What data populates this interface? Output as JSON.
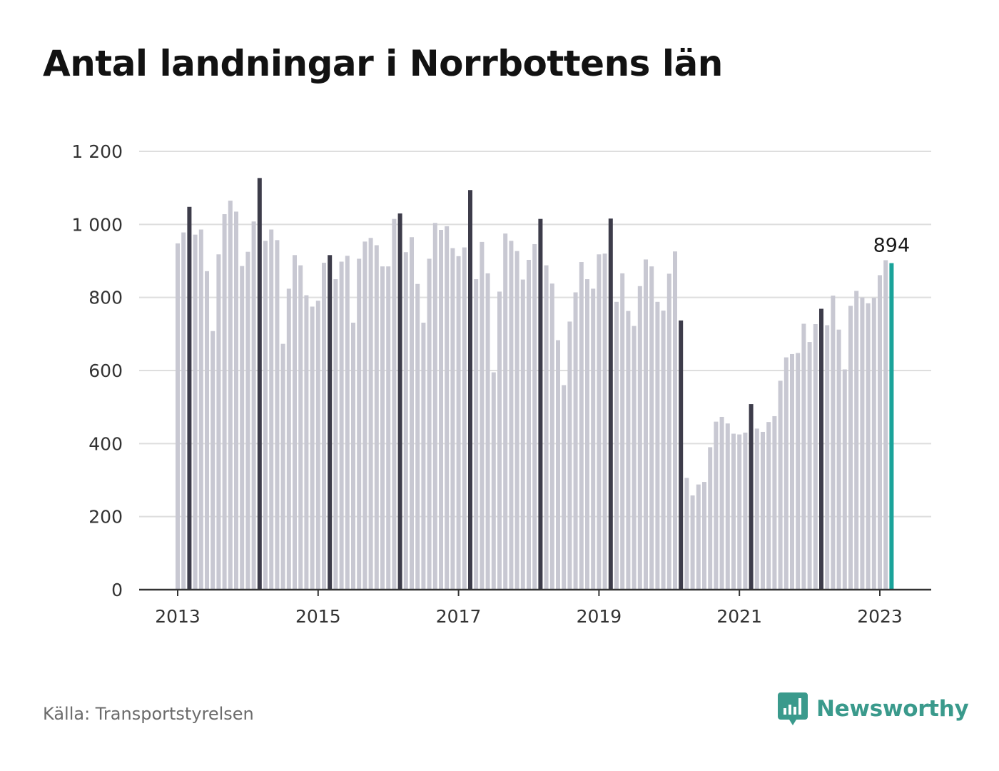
{
  "title": "Antal landningar i Norrbottens län",
  "source": "Källa: Transportstyrelsen",
  "brand": {
    "name": "Newsworthy",
    "icon": "newsworthy-logo-icon",
    "color": "#3a9a8c"
  },
  "colors": {
    "bar_regular": "#c8c8d2",
    "bar_march": "#3d3c4a",
    "bar_latest": "#1aa39a",
    "grid": "#dedede",
    "axis": "#333333"
  },
  "chart_data": {
    "type": "bar",
    "start": "2013-01",
    "ylim": [
      0,
      1200
    ],
    "yticks": [
      "0",
      "200",
      "400",
      "600",
      "800",
      "1 000",
      "1 200"
    ],
    "ytick_values": [
      0,
      200,
      400,
      600,
      800,
      1000,
      1200
    ],
    "xticks": [
      "2013",
      "2015",
      "2017",
      "2019",
      "2021",
      "2023"
    ],
    "grid": true,
    "highlight_month": "March",
    "latest_label": "894",
    "values": [
      948,
      978,
      1048,
      972,
      986,
      872,
      708,
      918,
      1028,
      1065,
      1035,
      886,
      925,
      1008,
      1127,
      955,
      986,
      957,
      673,
      824,
      916,
      888,
      806,
      775,
      791,
      895,
      916,
      850,
      898,
      914,
      731,
      906,
      953,
      963,
      943,
      885,
      885,
      1015,
      1030,
      924,
      965,
      837,
      731,
      906,
      1004,
      985,
      995,
      935,
      913,
      937,
      1094,
      850,
      952,
      866,
      595,
      816,
      975,
      955,
      927,
      849,
      903,
      946,
      1015,
      888,
      838,
      683,
      560,
      734,
      814,
      897,
      850,
      824,
      918,
      920,
      1016,
      788,
      866,
      763,
      722,
      831,
      904,
      885,
      788,
      764,
      865,
      926,
      737,
      306,
      258,
      288,
      295,
      390,
      460,
      473,
      455,
      427,
      425,
      430,
      508,
      441,
      432,
      459,
      475,
      572,
      636,
      645,
      648,
      728,
      678,
      727,
      769,
      724,
      805,
      712,
      603,
      777,
      818,
      800,
      784,
      799,
      861,
      902,
      894
    ]
  }
}
